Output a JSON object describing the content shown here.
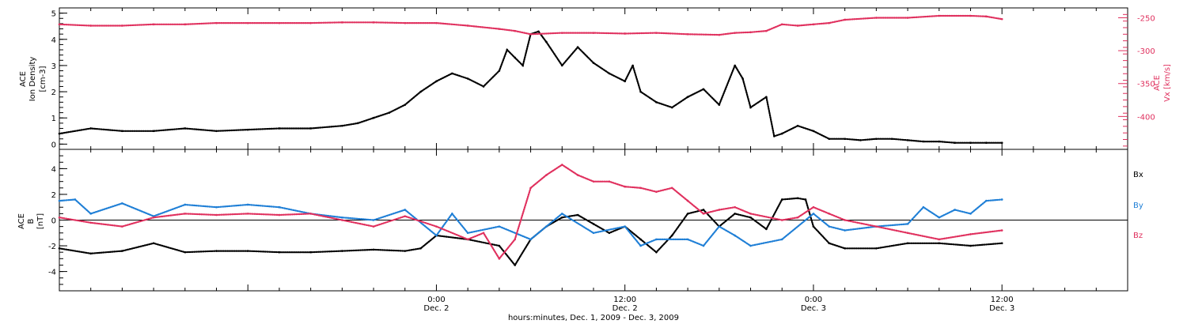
{
  "colors": {
    "black": "#000000",
    "red": "#e0305e",
    "blue": "#1f7fd6"
  },
  "x_axis": {
    "title": "hours:minutes, Dec. 1, 2009 - Dec. 3, 2009",
    "ticks": [
      {
        "hours": 24,
        "time": "0:00",
        "date": "Dec. 2"
      },
      {
        "hours": 36,
        "time": "12:00",
        "date": "Dec. 2"
      },
      {
        "hours": 48,
        "time": "0:00",
        "date": "Dec. 3"
      },
      {
        "hours": 60,
        "time": "12:00",
        "date": "Dec. 3"
      }
    ]
  },
  "chart_data": [
    {
      "type": "scatter",
      "panel": "top",
      "ylabel_left": [
        "ACE",
        "Ion Density",
        "[cm-3]"
      ],
      "ylabel_right": [
        "ACE",
        "Vx [km/s]"
      ],
      "ylim_left": [
        -0.2,
        5.2
      ],
      "ylim_right": [
        -450,
        -235
      ],
      "yticks_left": [
        0,
        1,
        2,
        3,
        4,
        5
      ],
      "yticks_right": [
        -250,
        -300,
        -350,
        -400
      ],
      "xlim_hours": [
        0,
        68
      ],
      "series": [
        {
          "name": "Ion Density",
          "axis": "left",
          "color": "black",
          "x": [
            0,
            2,
            4,
            6,
            8,
            10,
            12,
            14,
            16,
            18,
            19,
            20,
            21,
            22,
            23,
            24,
            25,
            26,
            27,
            28,
            28.5,
            29,
            29.5,
            30,
            30.5,
            31,
            32,
            33,
            34,
            35,
            36,
            36.5,
            37,
            38,
            39,
            40,
            41,
            42,
            43,
            43.5,
            44,
            45,
            45.5,
            46,
            47,
            48,
            49,
            50,
            51,
            52,
            53,
            54,
            55,
            56,
            57,
            58,
            59,
            60
          ],
          "values": [
            0.4,
            0.6,
            0.5,
            0.5,
            0.6,
            0.5,
            0.55,
            0.6,
            0.6,
            0.7,
            0.8,
            1.0,
            1.2,
            1.5,
            2.0,
            2.4,
            2.7,
            2.5,
            2.2,
            2.8,
            3.6,
            3.3,
            3.0,
            4.2,
            4.3,
            3.9,
            3.0,
            3.7,
            3.1,
            2.7,
            2.4,
            3.0,
            2.0,
            1.6,
            1.4,
            1.8,
            2.1,
            1.5,
            3.0,
            2.5,
            1.4,
            1.8,
            0.3,
            0.4,
            0.7,
            0.5,
            0.2,
            0.2,
            0.15,
            0.2,
            0.2,
            0.15,
            0.1,
            0.1,
            0.05,
            0.05,
            0.05,
            0.05
          ]
        },
        {
          "name": "ACE Vx",
          "axis": "right",
          "color": "red",
          "x": [
            0,
            2,
            4,
            6,
            8,
            10,
            12,
            14,
            16,
            18,
            20,
            22,
            24,
            26,
            28,
            29,
            30,
            32,
            34,
            36,
            38,
            40,
            42,
            43,
            44,
            45,
            46,
            47,
            48,
            49,
            50,
            52,
            54,
            56,
            58,
            59,
            60
          ],
          "values": [
            -260,
            -262,
            -262,
            -260,
            -260,
            -258,
            -258,
            -258,
            -258,
            -257,
            -257,
            -258,
            -258,
            -262,
            -267,
            -270,
            -275,
            -273,
            -273,
            -274,
            -273,
            -275,
            -276,
            -273,
            -272,
            -270,
            -260,
            -262,
            -260,
            -258,
            -253,
            -250,
            -250,
            -247,
            -247,
            -248,
            -252
          ]
        }
      ]
    },
    {
      "type": "scatter",
      "panel": "bottom",
      "ylabel_left": [
        "ACE",
        "B",
        "[nT]"
      ],
      "ylim": [
        -5.5,
        5.5
      ],
      "yticks": [
        -4,
        -2,
        0,
        2,
        4
      ],
      "xlim_hours": [
        0,
        68
      ],
      "legend_position": "right",
      "series": [
        {
          "name": "Bx",
          "color": "black",
          "x": [
            0,
            2,
            4,
            6,
            8,
            10,
            12,
            14,
            16,
            18,
            20,
            22,
            23,
            24,
            26,
            28,
            29,
            30,
            31,
            32,
            33,
            34,
            35,
            36,
            37,
            38,
            39,
            40,
            41,
            42,
            43,
            44,
            45,
            46,
            47,
            47.5,
            48,
            49,
            50,
            52,
            54,
            56,
            58,
            60
          ],
          "values": [
            -2.2,
            -2.6,
            -2.4,
            -1.8,
            -2.5,
            -2.4,
            -2.4,
            -2.5,
            -2.5,
            -2.4,
            -2.3,
            -2.4,
            -2.2,
            -1.2,
            -1.5,
            -2.0,
            -3.5,
            -1.5,
            -0.5,
            0.2,
            0.4,
            -0.3,
            -1.0,
            -0.5,
            -1.5,
            -2.5,
            -1.2,
            0.5,
            0.8,
            -0.5,
            0.5,
            0.2,
            -0.7,
            1.6,
            1.7,
            1.6,
            -0.5,
            -1.8,
            -2.2,
            -2.2,
            -1.8,
            -1.8,
            -2.0,
            -1.8
          ]
        },
        {
          "name": "By",
          "color": "blue",
          "x": [
            0,
            1,
            2,
            4,
            6,
            8,
            10,
            12,
            14,
            16,
            18,
            20,
            22,
            24,
            25,
            26,
            28,
            30,
            31,
            32,
            34,
            36,
            37,
            38,
            40,
            41,
            42,
            43,
            44,
            46,
            48,
            49,
            50,
            52,
            54,
            55,
            56,
            57,
            58,
            59,
            60
          ],
          "values": [
            1.5,
            1.6,
            0.5,
            1.3,
            0.3,
            1.2,
            1.0,
            1.2,
            1.0,
            0.5,
            0.2,
            0.0,
            0.8,
            -1.2,
            0.5,
            -1.0,
            -0.5,
            -1.5,
            -0.5,
            0.5,
            -1.0,
            -0.5,
            -2.0,
            -1.5,
            -1.5,
            -2.0,
            -0.5,
            -1.2,
            -2.0,
            -1.5,
            0.5,
            -0.5,
            -0.8,
            -0.5,
            -0.3,
            1.0,
            0.2,
            0.8,
            0.5,
            1.5,
            1.6
          ]
        },
        {
          "name": "Bz",
          "color": "red",
          "x": [
            0,
            2,
            4,
            6,
            8,
            10,
            12,
            14,
            16,
            18,
            20,
            22,
            24,
            26,
            27,
            28,
            29,
            30,
            31,
            32,
            33,
            34,
            35,
            36,
            37,
            38,
            39,
            40,
            41,
            42,
            43,
            44,
            46,
            47,
            48,
            49,
            50,
            52,
            54,
            56,
            58,
            60
          ],
          "values": [
            0.2,
            -0.2,
            -0.5,
            0.2,
            0.5,
            0.4,
            0.5,
            0.4,
            0.5,
            0.0,
            -0.5,
            0.3,
            -0.5,
            -1.5,
            -1.0,
            -3.0,
            -1.5,
            2.5,
            3.5,
            4.3,
            3.5,
            3.0,
            3.0,
            2.6,
            2.5,
            2.2,
            2.5,
            1.5,
            0.5,
            0.8,
            1.0,
            0.5,
            0.0,
            0.2,
            1.0,
            0.5,
            0.0,
            -0.5,
            -1.0,
            -1.5,
            -1.1,
            -0.8
          ]
        }
      ]
    }
  ]
}
